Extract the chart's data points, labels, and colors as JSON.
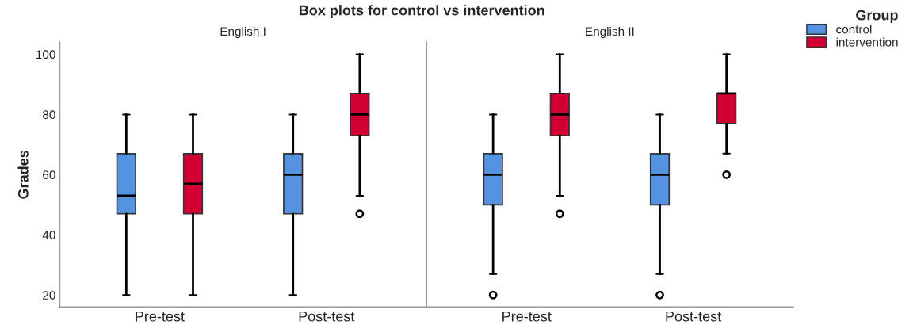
{
  "chart_data": [
    {
      "type": "box",
      "title": "Box plots for control vs intervention",
      "subtitle": "English I",
      "ylabel": "Grades",
      "categories": [
        "Pre-test",
        "Post-test"
      ],
      "ylim": [
        16,
        104
      ],
      "yticks": [
        20,
        40,
        60,
        80,
        100
      ],
      "legend_title": "Group",
      "grid": false,
      "legend": "top right",
      "series": [
        {
          "name": "control",
          "color": "#5593e0",
          "boxes": [
            {
              "low": 20,
              "q1": 47,
              "median": 53,
              "q3": 67,
              "high": 80
            },
            {
              "low": 20,
              "q1": 47,
              "median": 60,
              "q3": 67,
              "high": 80
            }
          ]
        },
        {
          "name": "intervention",
          "color": "#d20032",
          "boxes": [
            {
              "low": 20,
              "q1": 47,
              "median": 57,
              "q3": 67,
              "high": 80
            },
            {
              "low": 53,
              "q1": 73,
              "median": 80,
              "q3": 87,
              "high": 100,
              "outliers": [
                47
              ]
            }
          ]
        }
      ]
    },
    {
      "type": "box",
      "subtitle": "English II",
      "categories": [
        "Pre-test",
        "Post-test"
      ],
      "ylim": [
        16,
        104
      ],
      "tick_labels": "x",
      "grid": false,
      "series": [
        {
          "color": "#5593e0",
          "boxes": [
            {
              "low": 27,
              "q1": 50,
              "median": 60,
              "q3": 67,
              "high": 80,
              "outliers": [
                20
              ]
            },
            {
              "low": 27,
              "q1": 50,
              "median": 60,
              "q3": 67,
              "high": 80,
              "outliers": [
                20
              ]
            }
          ]
        },
        {
          "color": "#d20032",
          "boxes": [
            {
              "low": 53,
              "q1": 73,
              "median": 80,
              "q3": 87,
              "high": 100,
              "outliers": [
                47
              ]
            },
            {
              "low": 67,
              "q1": 77,
              "median": 87,
              "q3": 87,
              "high": 100,
              "outliers": [
                60
              ]
            }
          ]
        }
      ]
    }
  ]
}
